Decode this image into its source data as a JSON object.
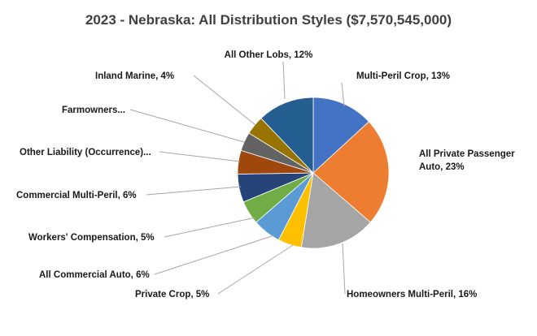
{
  "chart_data": {
    "type": "pie",
    "title": "2023 - Nebraska: All Distribution Styles ($7,570,545,000)",
    "slices": [
      {
        "name": "Multi-Peril Crop",
        "percent": 13,
        "value_label": "13%",
        "color": "#4472C4",
        "label_lines": [
          "Multi-Peril Crop, 13%"
        ]
      },
      {
        "name": "All Private Passenger Auto",
        "percent": 23,
        "value_label": "23%",
        "color": "#ED7D31",
        "label_lines": [
          "All Private Passenger",
          "Auto, 23%"
        ]
      },
      {
        "name": "Homeowners Multi-Peril",
        "percent": 16,
        "value_label": "16%",
        "color": "#A5A5A5",
        "label_lines": [
          "Homeowners Multi-Peril, 16%"
        ]
      },
      {
        "name": "Private Crop",
        "percent": 5,
        "value_label": "5%",
        "color": "#FFC000",
        "label_lines": [
          "Private Crop, 5%"
        ]
      },
      {
        "name": "All Commercial Auto",
        "percent": 6,
        "value_label": "6%",
        "color": "#5B9BD5",
        "label_lines": [
          "All Commercial Auto, 6%"
        ]
      },
      {
        "name": "Workers' Compensation",
        "percent": 5,
        "value_label": "5%",
        "color": "#70AD47",
        "label_lines": [
          "Workers' Compensation, 5%"
        ]
      },
      {
        "name": "Commercial Multi-Peril",
        "percent": 6,
        "value_label": "6%",
        "color": "#264478",
        "label_lines": [
          "Commercial Multi-Peril, 6%"
        ]
      },
      {
        "name": "Other Liability (Occurrence)",
        "percent": 5,
        "value_label": "",
        "color": "#9E480E",
        "label_lines": [
          "Other Liability (Occurrence)..."
        ]
      },
      {
        "name": "Farmowners",
        "percent": 4,
        "value_label": "",
        "color": "#636363",
        "label_lines": [
          "Farmowners..."
        ]
      },
      {
        "name": "Inland Marine",
        "percent": 4,
        "value_label": "4%",
        "color": "#997300",
        "label_lines": [
          "Inland Marine, 4%"
        ]
      },
      {
        "name": "All Other Lobs",
        "percent": 12,
        "value_label": "12%",
        "color": "#255E91",
        "label_lines": [
          "All Other Lobs, 12%"
        ]
      }
    ]
  }
}
